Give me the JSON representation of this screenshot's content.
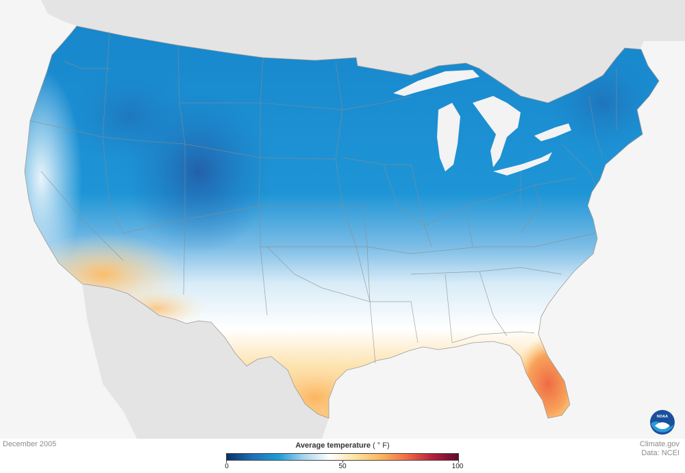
{
  "map": {
    "date": "December 2005",
    "credit_line1": "Climate.gov",
    "credit_line2": "Data: NCEI",
    "logo_icon": "noaa-logo-icon",
    "logo_text": "NOAA"
  },
  "legend": {
    "title": "Average temperature",
    "unit": "( ° F)",
    "min": 0,
    "mid": 50,
    "max": 100,
    "tick_labels": [
      "0",
      "50",
      "100"
    ],
    "colors": [
      "#08306b",
      "#1f6fb4",
      "#1a9bd7",
      "#a8d4ee",
      "#ffffff",
      "#fde2a0",
      "#fbb55f",
      "#f26a45",
      "#b51f3c",
      "#5e0b30"
    ]
  },
  "palette": {
    "ocean": "#f5f5f5",
    "land_outside": "#e2e2e2",
    "cold": "#1a8ad0",
    "very_cold": "#2a63a8",
    "mild": "#ffffff",
    "warm": "#fbc46f",
    "hot": "#f06a44",
    "state_border": "#8c8c8c"
  }
}
